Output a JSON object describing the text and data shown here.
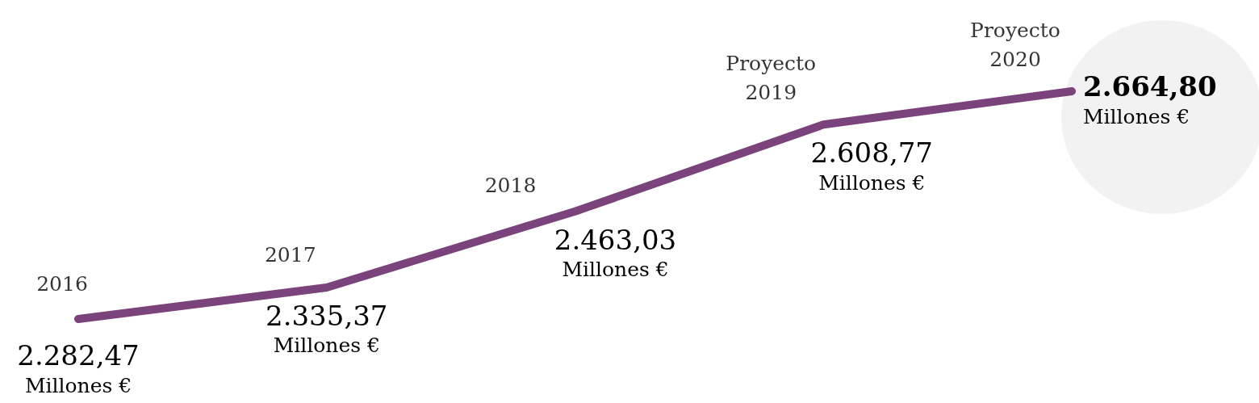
{
  "chart_data": {
    "type": "line",
    "categories": [
      "2016",
      "2017",
      "2018",
      "Proyecto\n2019",
      "Proyecto\n2020"
    ],
    "series": [
      {
        "color": "#7b437b",
        "values": [
          2282.47,
          2335.37,
          2463.03,
          2608.77,
          2664.8
        ],
        "value_labels": [
          "2.282,47\nMillones €",
          "2.335,37\nMillones €",
          "2.463,03\nMillones €",
          "2.608,77\nMillones €",
          "2.664,80\nMillones €"
        ]
      }
    ],
    "marker": "none",
    "line_style": "solid"
  }
}
